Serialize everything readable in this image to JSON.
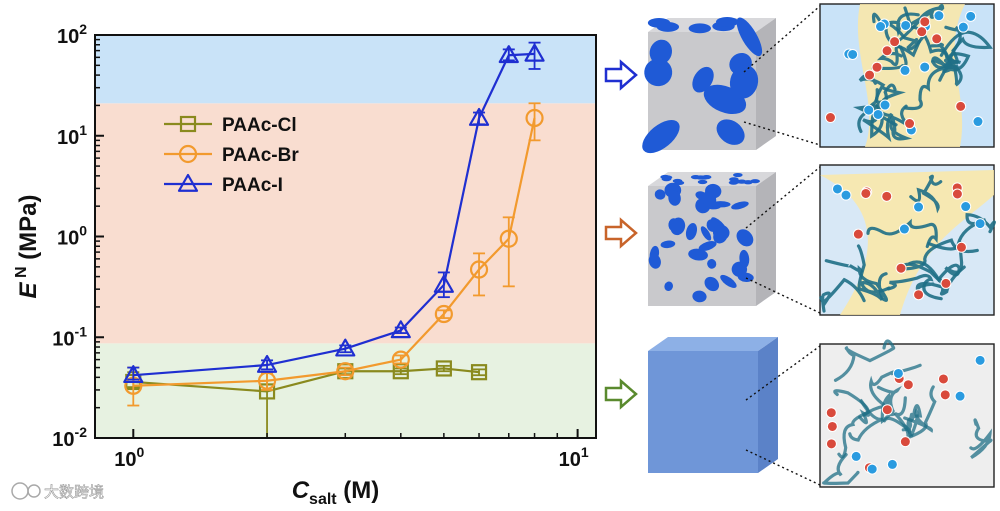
{
  "chart_data": {
    "type": "scatter",
    "x_scale": "log",
    "y_scale": "log",
    "xlim": [
      0.82,
      11
    ],
    "ylim": [
      0.01,
      100
    ],
    "x_ticks": [
      {
        "value": 1,
        "base": "10",
        "exp": "0"
      },
      {
        "value": 10,
        "base": "10",
        "exp": "1"
      }
    ],
    "y_ticks": [
      {
        "value": 0.01,
        "base": "10",
        "exp": "-2"
      },
      {
        "value": 0.1,
        "base": "10",
        "exp": "-1"
      },
      {
        "value": 1,
        "base": "10",
        "exp": "0"
      },
      {
        "value": 10,
        "base": "10",
        "exp": "1"
      },
      {
        "value": 100,
        "base": "10",
        "exp": "2"
      }
    ],
    "xlabel": {
      "main": "C",
      "sub": "salt",
      "rest": " (M)"
    },
    "ylabel": {
      "main": "E",
      "sup": " N",
      "rest": " (MPa)"
    },
    "bands": [
      {
        "from": 0.01,
        "to": 0.087,
        "color": "#e7f2e1"
      },
      {
        "from": 0.087,
        "to": 21,
        "color": "#f9ddd0"
      },
      {
        "from": 21,
        "to": 100,
        "color": "#c9e3f8"
      }
    ],
    "legend_position": "upper-left",
    "series": [
      {
        "name": "PAAc-Cl",
        "color": "#8a8a1e",
        "marker": "square",
        "x": [
          1,
          2,
          3,
          4,
          5,
          6
        ],
        "y": [
          0.036,
          0.029,
          0.046,
          0.046,
          0.049,
          0.045
        ],
        "y_err_low": [
          0.032,
          0.01,
          0.043,
          0.043,
          0.046,
          0.042
        ],
        "y_err_high": [
          0.045,
          0.045,
          0.049,
          0.049,
          0.052,
          0.048
        ]
      },
      {
        "name": "PAAc-Br",
        "color": "#f29a2e",
        "marker": "circle",
        "x": [
          1,
          2,
          3,
          4,
          5,
          6,
          7,
          8
        ],
        "y": [
          0.033,
          0.037,
          0.046,
          0.06,
          0.17,
          0.47,
          0.95,
          15
        ],
        "y_err_low": [
          0.021,
          0.03,
          0.042,
          0.055,
          0.155,
          0.26,
          0.32,
          9
        ],
        "y_err_high": [
          0.05,
          0.044,
          0.05,
          0.066,
          0.185,
          0.68,
          1.55,
          21
        ]
      },
      {
        "name": "PAAc-I",
        "color": "#1f2fd1",
        "marker": "triangle",
        "x": [
          1,
          2,
          3,
          4,
          5,
          6,
          7,
          8
        ],
        "y": [
          0.042,
          0.053,
          0.077,
          0.117,
          0.33,
          15,
          63,
          65
        ],
        "y_err_low": [
          0.038,
          0.048,
          0.071,
          0.11,
          0.25,
          13,
          56,
          46
        ],
        "y_err_high": [
          0.05,
          0.059,
          0.083,
          0.125,
          0.44,
          17,
          72,
          84
        ]
      }
    ]
  },
  "schematic": {
    "arrow_colors": [
      "#1f2fd1",
      "#c8642a",
      "#5a8a2e"
    ],
    "cube_colors": {
      "blue": "#1f5ad6",
      "gray": "#c9c9cc",
      "plain": "#6f96d8"
    },
    "band_colors": [
      "#c9e3f8",
      "#d8e8f6",
      "#eeeeee"
    ],
    "polymer_color": "#1f6f86",
    "halo_color": "#fbe7a6",
    "cation_color": "#d94a3c",
    "anion_color": "#2a9be0"
  },
  "watermark": {
    "text": "大数跨境"
  }
}
